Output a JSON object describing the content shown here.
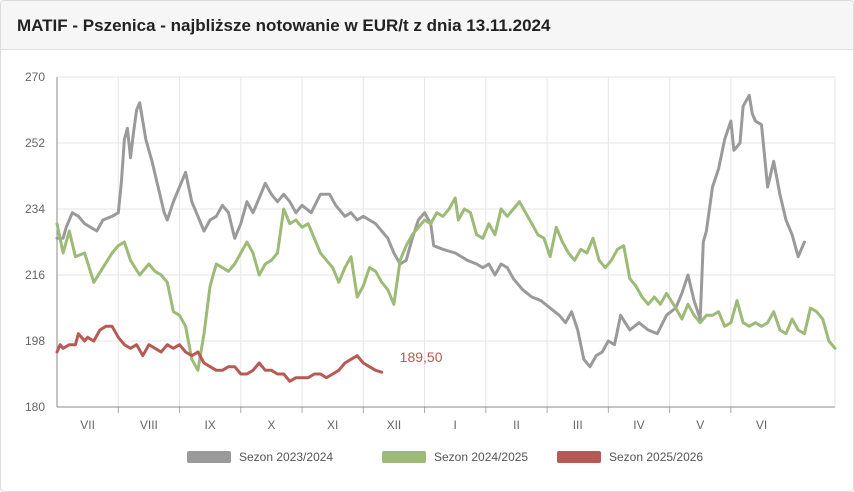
{
  "header": {
    "title": "MATIF - Pszenica - najbliższe notowanie w EUR/t z dnia 13.11.2024"
  },
  "colors": {
    "s1": "#9a9a9a",
    "s2": "#9dba77",
    "s3": "#b85a54",
    "grid": "#e6e6e6",
    "axis": "#888888"
  },
  "chart_data": {
    "type": "line",
    "title": "MATIF - Pszenica - najbliższe notowanie w EUR/t z dnia 13.11.2024",
    "xlabel": "",
    "ylabel": "",
    "ylim": [
      180,
      270
    ],
    "y_ticks": [
      180,
      198,
      216,
      234,
      252,
      270
    ],
    "x_categories": [
      "VII",
      "VIII",
      "IX",
      "X",
      "XI",
      "XII",
      "I",
      "II",
      "III",
      "IV",
      "V",
      "VI"
    ],
    "x_range_months": [
      0,
      11.7
    ],
    "grid": true,
    "legend_position": "bottom",
    "end_label": {
      "series": 2,
      "text": "189,50"
    },
    "series": [
      {
        "name": "Sezon 2023/2024",
        "color": "#9a9a9a",
        "points": [
          [
            0,
            226
          ],
          [
            0.1,
            226
          ],
          [
            0.15,
            229
          ],
          [
            0.25,
            233
          ],
          [
            0.35,
            232
          ],
          [
            0.45,
            230
          ],
          [
            0.55,
            229
          ],
          [
            0.65,
            228
          ],
          [
            0.75,
            231
          ],
          [
            0.9,
            232
          ],
          [
            1,
            233
          ],
          [
            1.05,
            241
          ],
          [
            1.1,
            253
          ],
          [
            1.15,
            256
          ],
          [
            1.2,
            248
          ],
          [
            1.25,
            255
          ],
          [
            1.3,
            261
          ],
          [
            1.35,
            263
          ],
          [
            1.45,
            253
          ],
          [
            1.55,
            247
          ],
          [
            1.65,
            240
          ],
          [
            1.75,
            233
          ],
          [
            1.8,
            231
          ],
          [
            1.9,
            236
          ],
          [
            2,
            240
          ],
          [
            2.1,
            244
          ],
          [
            2.2,
            236
          ],
          [
            2.3,
            232
          ],
          [
            2.4,
            228
          ],
          [
            2.5,
            231
          ],
          [
            2.6,
            232
          ],
          [
            2.7,
            235
          ],
          [
            2.8,
            233
          ],
          [
            2.9,
            226
          ],
          [
            3,
            230
          ],
          [
            3.1,
            236
          ],
          [
            3.2,
            233
          ],
          [
            3.3,
            237
          ],
          [
            3.4,
            241
          ],
          [
            3.5,
            238
          ],
          [
            3.6,
            236
          ],
          [
            3.7,
            238
          ],
          [
            3.8,
            236
          ],
          [
            3.9,
            233
          ],
          [
            4,
            235
          ],
          [
            4.15,
            233
          ],
          [
            4.3,
            238
          ],
          [
            4.45,
            238
          ],
          [
            4.55,
            235
          ],
          [
            4.7,
            232
          ],
          [
            4.8,
            233
          ],
          [
            4.9,
            231
          ],
          [
            5,
            232
          ],
          [
            5.1,
            231
          ],
          [
            5.2,
            230
          ],
          [
            5.3,
            228
          ],
          [
            5.4,
            226
          ],
          [
            5.5,
            222
          ],
          [
            5.6,
            219
          ],
          [
            5.7,
            220
          ],
          [
            5.8,
            226
          ],
          [
            5.9,
            231
          ],
          [
            6,
            233
          ],
          [
            6.1,
            230
          ],
          [
            6.15,
            224
          ],
          [
            6.3,
            223
          ],
          [
            6.5,
            222
          ],
          [
            6.7,
            220
          ],
          [
            6.85,
            219
          ],
          [
            6.95,
            218
          ],
          [
            7.05,
            219
          ],
          [
            7.15,
            216
          ],
          [
            7.25,
            219
          ],
          [
            7.35,
            218
          ],
          [
            7.45,
            215
          ],
          [
            7.6,
            212
          ],
          [
            7.75,
            210
          ],
          [
            7.9,
            209
          ],
          [
            8.05,
            207
          ],
          [
            8.2,
            205
          ],
          [
            8.3,
            203
          ],
          [
            8.4,
            206
          ],
          [
            8.5,
            201
          ],
          [
            8.6,
            193
          ],
          [
            8.7,
            191
          ],
          [
            8.8,
            194
          ],
          [
            8.9,
            195
          ],
          [
            9,
            198
          ],
          [
            9.1,
            197
          ],
          [
            9.2,
            205
          ],
          [
            9.35,
            201
          ],
          [
            9.5,
            203
          ],
          [
            9.65,
            201
          ],
          [
            9.8,
            200
          ],
          [
            9.95,
            205
          ],
          [
            10.1,
            207
          ],
          [
            10.2,
            211
          ],
          [
            10.3,
            216
          ],
          [
            10.4,
            209
          ],
          [
            10.5,
            204
          ],
          [
            10.55,
            225
          ],
          [
            10.6,
            228
          ],
          [
            10.7,
            240
          ],
          [
            10.8,
            245
          ],
          [
            10.9,
            253
          ],
          [
            11,
            258
          ],
          [
            11.05,
            250
          ],
          [
            11.15,
            252
          ],
          [
            11.2,
            262
          ],
          [
            11.3,
            265
          ],
          [
            11.35,
            260
          ],
          [
            11.4,
            258
          ],
          [
            11.5,
            257
          ],
          [
            11.6,
            240
          ],
          [
            11.7,
            247
          ],
          [
            11.8,
            238
          ],
          [
            11.9,
            231
          ],
          [
            12.0,
            227
          ],
          [
            12.1,
            221
          ],
          [
            12.2,
            225
          ]
        ]
      },
      {
        "name": "Sezon 2024/2025",
        "color": "#9dba77",
        "points": [
          [
            0,
            230
          ],
          [
            0.1,
            222
          ],
          [
            0.2,
            228
          ],
          [
            0.3,
            221
          ],
          [
            0.45,
            222
          ],
          [
            0.6,
            214
          ],
          [
            0.75,
            218
          ],
          [
            0.9,
            222
          ],
          [
            1,
            224
          ],
          [
            1.1,
            225
          ],
          [
            1.2,
            220
          ],
          [
            1.35,
            216
          ],
          [
            1.5,
            219
          ],
          [
            1.6,
            217
          ],
          [
            1.7,
            216
          ],
          [
            1.8,
            214
          ],
          [
            1.9,
            206
          ],
          [
            2,
            205
          ],
          [
            2.1,
            202
          ],
          [
            2.2,
            193
          ],
          [
            2.3,
            190
          ],
          [
            2.4,
            200
          ],
          [
            2.5,
            213
          ],
          [
            2.6,
            219
          ],
          [
            2.7,
            218
          ],
          [
            2.8,
            217
          ],
          [
            2.9,
            219
          ],
          [
            3,
            222
          ],
          [
            3.1,
            225
          ],
          [
            3.2,
            222
          ],
          [
            3.3,
            216
          ],
          [
            3.4,
            219
          ],
          [
            3.5,
            220
          ],
          [
            3.6,
            222
          ],
          [
            3.7,
            234
          ],
          [
            3.8,
            230
          ],
          [
            3.9,
            231
          ],
          [
            4,
            229
          ],
          [
            4.1,
            230
          ],
          [
            4.2,
            226
          ],
          [
            4.3,
            222
          ],
          [
            4.4,
            220
          ],
          [
            4.5,
            218
          ],
          [
            4.6,
            214
          ],
          [
            4.7,
            218
          ],
          [
            4.8,
            221
          ],
          [
            4.9,
            210
          ],
          [
            5,
            213
          ],
          [
            5.1,
            218
          ],
          [
            5.2,
            217
          ],
          [
            5.3,
            214
          ],
          [
            5.4,
            212
          ],
          [
            5.5,
            208
          ],
          [
            5.6,
            220
          ],
          [
            5.7,
            224
          ],
          [
            5.8,
            227
          ],
          [
            5.9,
            229
          ],
          [
            6,
            231
          ],
          [
            6.1,
            230
          ],
          [
            6.2,
            233
          ],
          [
            6.3,
            232
          ],
          [
            6.4,
            234
          ],
          [
            6.5,
            237
          ],
          [
            6.55,
            231
          ],
          [
            6.65,
            234
          ],
          [
            6.75,
            233
          ],
          [
            6.85,
            227
          ],
          [
            6.95,
            226
          ],
          [
            7.05,
            230
          ],
          [
            7.15,
            227
          ],
          [
            7.25,
            234
          ],
          [
            7.35,
            232
          ],
          [
            7.45,
            234
          ],
          [
            7.55,
            236
          ],
          [
            7.65,
            233
          ],
          [
            7.75,
            230
          ],
          [
            7.85,
            227
          ],
          [
            7.95,
            226
          ],
          [
            8.05,
            221
          ],
          [
            8.15,
            229
          ],
          [
            8.25,
            225
          ],
          [
            8.35,
            222
          ],
          [
            8.45,
            220
          ],
          [
            8.55,
            223
          ],
          [
            8.65,
            222
          ],
          [
            8.75,
            226
          ],
          [
            8.85,
            220
          ],
          [
            8.95,
            218
          ],
          [
            9.05,
            220
          ],
          [
            9.15,
            223
          ],
          [
            9.25,
            224
          ],
          [
            9.35,
            215
          ],
          [
            9.45,
            213
          ],
          [
            9.55,
            210
          ],
          [
            9.65,
            208
          ],
          [
            9.75,
            210
          ],
          [
            9.85,
            208
          ],
          [
            9.95,
            211
          ],
          [
            10.1,
            207
          ],
          [
            10.2,
            204
          ],
          [
            10.3,
            208
          ],
          [
            10.4,
            205
          ],
          [
            10.5,
            203
          ],
          [
            10.6,
            205
          ],
          [
            10.7,
            205
          ],
          [
            10.8,
            206
          ],
          [
            10.9,
            202
          ],
          [
            11,
            203
          ],
          [
            11.1,
            209
          ],
          [
            11.2,
            203
          ],
          [
            11.3,
            202
          ],
          [
            11.4,
            203
          ],
          [
            11.5,
            202
          ],
          [
            11.6,
            203
          ],
          [
            11.7,
            206
          ],
          [
            11.8,
            201
          ],
          [
            11.9,
            200
          ],
          [
            12,
            204
          ],
          [
            12.1,
            201
          ],
          [
            12.2,
            200
          ],
          [
            12.3,
            207
          ],
          [
            12.4,
            206
          ],
          [
            12.5,
            204
          ],
          [
            12.6,
            198
          ],
          [
            12.7,
            196
          ]
        ]
      },
      {
        "name": "Sezon 2025/2026",
        "color": "#b85a54",
        "points": [
          [
            0,
            195
          ],
          [
            0.05,
            197
          ],
          [
            0.1,
            196
          ],
          [
            0.2,
            197
          ],
          [
            0.3,
            197
          ],
          [
            0.35,
            200
          ],
          [
            0.45,
            198
          ],
          [
            0.5,
            199
          ],
          [
            0.6,
            198
          ],
          [
            0.7,
            201
          ],
          [
            0.8,
            202
          ],
          [
            0.9,
            202
          ],
          [
            1,
            199
          ],
          [
            1.1,
            197
          ],
          [
            1.2,
            196
          ],
          [
            1.3,
            197
          ],
          [
            1.4,
            194
          ],
          [
            1.5,
            197
          ],
          [
            1.6,
            196
          ],
          [
            1.7,
            195
          ],
          [
            1.8,
            197
          ],
          [
            1.9,
            196
          ],
          [
            2,
            197
          ],
          [
            2.1,
            195
          ],
          [
            2.2,
            194
          ],
          [
            2.3,
            195
          ],
          [
            2.4,
            192
          ],
          [
            2.5,
            191
          ],
          [
            2.6,
            190
          ],
          [
            2.7,
            190
          ],
          [
            2.8,
            191
          ],
          [
            2.9,
            191
          ],
          [
            3,
            189
          ],
          [
            3.1,
            189
          ],
          [
            3.2,
            190
          ],
          [
            3.3,
            192
          ],
          [
            3.4,
            190
          ],
          [
            3.5,
            190
          ],
          [
            3.6,
            189
          ],
          [
            3.7,
            189
          ],
          [
            3.8,
            187
          ],
          [
            3.9,
            188
          ],
          [
            4,
            188
          ],
          [
            4.1,
            188
          ],
          [
            4.2,
            189
          ],
          [
            4.3,
            189
          ],
          [
            4.4,
            188
          ],
          [
            4.5,
            189
          ],
          [
            4.6,
            190
          ],
          [
            4.7,
            192
          ],
          [
            4.8,
            193
          ],
          [
            4.9,
            194
          ],
          [
            5,
            192
          ],
          [
            5.1,
            191
          ],
          [
            5.2,
            190
          ],
          [
            5.3,
            189.5
          ]
        ]
      }
    ]
  }
}
